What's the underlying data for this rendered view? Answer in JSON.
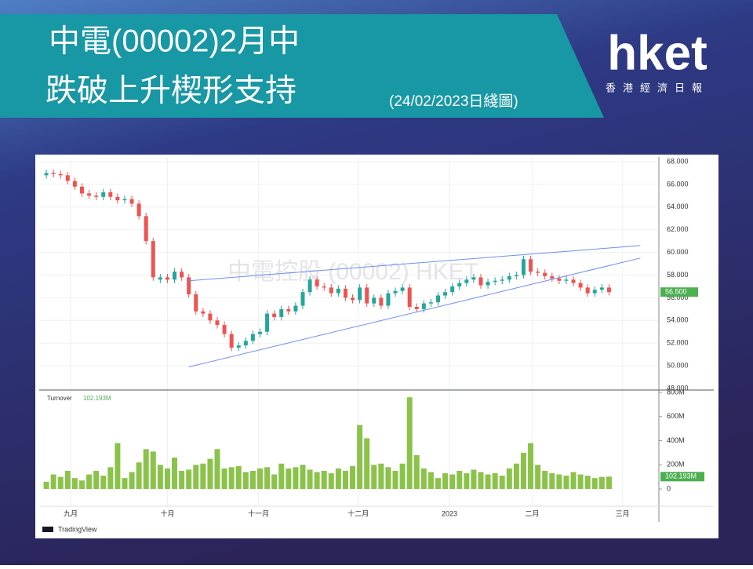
{
  "header": {
    "title_line1": "中電(00002)2月中",
    "title_line2": "跌破上升楔形支持",
    "date_note": "(24/02/2023日綫圖)"
  },
  "logo": {
    "brand": "hket",
    "subtitle": "香港經濟日報"
  },
  "chart_data": {
    "type": "candlestick",
    "watermark": "中電控股 (00002) HKET",
    "source": "TradingView",
    "up_color": "#26a69a",
    "down_color": "#ef5350",
    "volume_color": "#8bc34a",
    "trendline_color": "#6d8ff0",
    "grid": true,
    "ylim": [
      48,
      68
    ],
    "yticks": [
      {
        "value": 68,
        "label": "68.000"
      },
      {
        "value": 66,
        "label": "66.000"
      },
      {
        "value": 64,
        "label": "64.000"
      },
      {
        "value": 62,
        "label": "62.000"
      },
      {
        "value": 60,
        "label": "60.000"
      },
      {
        "value": 58,
        "label": "58.000"
      },
      {
        "value": 56,
        "label": "56.000"
      },
      {
        "value": 54,
        "label": "54.000"
      },
      {
        "value": 52,
        "label": "52.000"
      },
      {
        "value": 50,
        "label": "50.000"
      },
      {
        "value": 48,
        "label": "48.000"
      }
    ],
    "xlim": [
      -1,
      86
    ],
    "xticks": [
      {
        "value": 3.4,
        "label": "九月"
      },
      {
        "value": 17,
        "label": "十月"
      },
      {
        "value": 29.8,
        "label": "十一月"
      },
      {
        "value": 43.8,
        "label": "十二月"
      },
      {
        "value": 56.6,
        "label": "2023"
      },
      {
        "value": 68.2,
        "label": "二月"
      },
      {
        "value": 80.9,
        "label": "三月"
      }
    ],
    "last_price": {
      "value": 56.5,
      "label": "56.500"
    },
    "open": [
      66.8,
      67.0,
      66.9,
      66.8,
      66.3,
      65.8,
      65.2,
      65.0,
      64.9,
      65.3,
      64.9,
      64.6,
      64.7,
      64.3,
      63.2,
      61.0,
      57.6,
      57.8,
      57.6,
      58.3,
      57.8,
      56.3,
      54.8,
      54.6,
      54.0,
      53.6,
      52.8,
      51.6,
      51.8,
      52.2,
      52.8,
      53.0,
      54.6,
      54.3,
      55.0,
      54.8,
      55.3,
      56.5,
      57.6,
      57.0,
      56.9,
      56.4,
      56.8,
      56.0,
      55.8,
      56.9,
      55.5,
      56.0,
      55.3,
      56.4,
      56.6,
      56.9,
      55.2,
      55.0,
      55.5,
      55.6,
      56.2,
      56.5,
      57.0,
      57.3,
      57.6,
      57.8,
      57.1,
      57.4,
      57.5,
      57.6,
      57.9,
      58.0,
      59.4,
      58.3,
      58.2,
      57.9,
      57.7,
      57.5,
      57.6,
      57.3,
      56.9,
      56.4,
      56.7,
      56.9
    ],
    "high": [
      67.3,
      67.3,
      67.2,
      67.1,
      66.6,
      66.1,
      65.5,
      65.3,
      65.6,
      65.6,
      65.2,
      65.0,
      65.0,
      64.6,
      63.5,
      61.3,
      58.1,
      58.1,
      58.6,
      58.6,
      58.1,
      56.6,
      55.1,
      54.9,
      54.3,
      53.9,
      53.1,
      52.1,
      52.5,
      53.1,
      53.3,
      54.9,
      54.9,
      55.3,
      55.3,
      55.6,
      56.8,
      57.9,
      57.9,
      57.3,
      57.2,
      57.1,
      57.1,
      56.3,
      57.2,
      57.2,
      56.3,
      56.3,
      56.7,
      56.9,
      57.2,
      57.2,
      55.5,
      55.8,
      55.9,
      56.5,
      56.8,
      57.3,
      57.6,
      57.9,
      58.1,
      58.1,
      57.7,
      57.8,
      57.9,
      58.2,
      58.3,
      59.7,
      59.7,
      58.6,
      58.5,
      58.2,
      58.0,
      57.9,
      57.9,
      57.6,
      57.2,
      57.0,
      57.2,
      57.2
    ],
    "low": [
      66.5,
      66.6,
      66.5,
      66.0,
      65.5,
      64.9,
      64.7,
      64.6,
      64.6,
      64.6,
      64.3,
      64.3,
      64.0,
      62.9,
      60.7,
      57.5,
      57.3,
      57.3,
      57.3,
      57.5,
      56.0,
      54.5,
      54.3,
      53.7,
      53.3,
      52.5,
      51.3,
      51.3,
      51.5,
      51.9,
      52.5,
      52.7,
      54.0,
      54.0,
      54.5,
      54.5,
      55.0,
      56.2,
      56.7,
      56.6,
      56.1,
      56.1,
      55.7,
      55.5,
      55.5,
      55.2,
      55.2,
      55.0,
      55.0,
      56.1,
      56.3,
      54.9,
      54.7,
      54.7,
      55.2,
      55.3,
      55.9,
      56.2,
      56.7,
      57.0,
      57.3,
      56.8,
      56.8,
      57.1,
      57.2,
      57.3,
      57.6,
      57.7,
      58.0,
      57.9,
      57.6,
      57.4,
      57.2,
      57.2,
      57.0,
      56.6,
      56.1,
      56.1,
      56.4,
      56.2
    ],
    "close": [
      67.0,
      66.9,
      66.8,
      66.3,
      65.8,
      65.2,
      65.0,
      64.9,
      65.3,
      64.9,
      64.6,
      64.7,
      64.3,
      63.2,
      61.0,
      57.8,
      57.8,
      57.6,
      58.3,
      57.8,
      56.3,
      54.8,
      54.6,
      54.0,
      53.6,
      52.8,
      51.6,
      51.8,
      52.2,
      52.8,
      53.0,
      54.6,
      54.3,
      55.0,
      54.8,
      55.3,
      56.5,
      57.6,
      57.0,
      56.9,
      56.4,
      56.8,
      56.0,
      55.8,
      56.9,
      55.5,
      56.0,
      55.3,
      56.4,
      56.6,
      56.9,
      55.2,
      55.0,
      55.5,
      55.6,
      56.2,
      56.5,
      57.0,
      57.3,
      57.6,
      57.8,
      57.1,
      57.4,
      57.5,
      57.6,
      57.9,
      58.0,
      59.4,
      58.3,
      58.2,
      57.9,
      57.7,
      57.5,
      57.6,
      57.3,
      56.9,
      56.4,
      56.7,
      56.9,
      56.5
    ],
    "trendlines": [
      {
        "x": [
          20,
          83.4
        ],
        "y": [
          57.5,
          60.6
        ]
      },
      {
        "x": [
          20,
          83.4
        ],
        "y": [
          49.9,
          59.5
        ]
      }
    ],
    "volume": {
      "name": "Turnover",
      "last_label": "102.193M",
      "ylim": [
        0,
        800
      ],
      "yticks": [
        {
          "value": 800,
          "label": "800M"
        },
        {
          "value": 600,
          "label": "600M"
        },
        {
          "value": 400,
          "label": "400M"
        },
        {
          "value": 200,
          "label": "200M"
        },
        0
      ],
      "values": [
        60,
        120,
        100,
        150,
        90,
        70,
        120,
        150,
        110,
        180,
        380,
        90,
        140,
        220,
        330,
        310,
        200,
        170,
        260,
        150,
        160,
        200,
        210,
        250,
        330,
        170,
        180,
        190,
        140,
        150,
        170,
        180,
        120,
        210,
        170,
        180,
        200,
        160,
        140,
        150,
        130,
        170,
        150,
        190,
        530,
        420,
        200,
        210,
        180,
        150,
        210,
        760,
        280,
        170,
        140,
        90,
        130,
        120,
        150,
        130,
        160,
        140,
        120,
        130,
        110,
        170,
        210,
        300,
        380,
        200,
        150,
        130,
        120,
        110,
        140,
        120,
        110,
        90,
        100,
        102.193
      ]
    }
  }
}
